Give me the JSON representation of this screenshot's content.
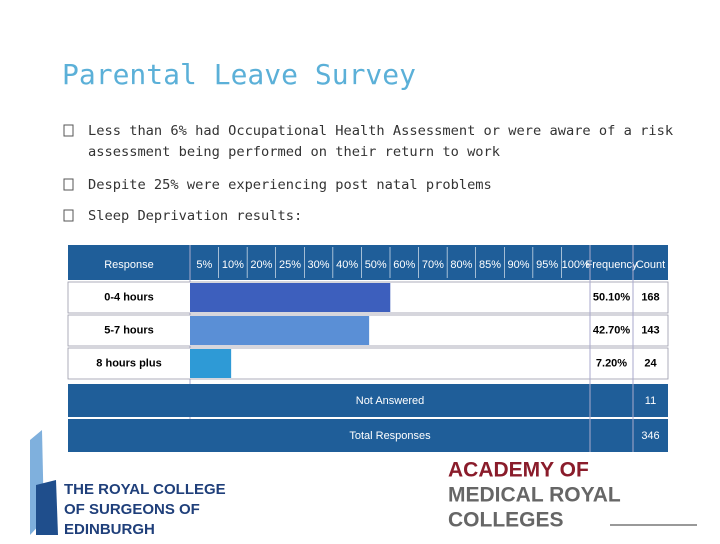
{
  "title": "Parental Leave Survey",
  "bullets": [
    "Less than 6% had Occupational Health Assessment or were aware of a risk",
    "assessment being performed on their  return to  work",
    "Despite 25% were experiencing post natal problems",
    "Sleep Deprivation results:"
  ],
  "table": {
    "response_header": "Response",
    "percent_headers": [
      {
        "value": 5,
        "label": "5%"
      },
      {
        "value": 10,
        "label": "10%"
      },
      {
        "value": 20,
        "label": "20%"
      },
      {
        "value": 25,
        "label": "25%"
      },
      {
        "value": 30,
        "label": "30%"
      },
      {
        "value": 40,
        "label": "40%"
      },
      {
        "value": 50,
        "label": "50%"
      },
      {
        "value": 60,
        "label": "60%"
      },
      {
        "value": 70,
        "label": "70%"
      },
      {
        "value": 80,
        "label": "80%"
      },
      {
        "value": 85,
        "label": "85%"
      },
      {
        "value": 90,
        "label": "90%"
      },
      {
        "value": 95,
        "label": "95%"
      },
      {
        "value": 100,
        "label": "100%"
      }
    ],
    "frequency_header": "Frequency",
    "count_header": "Count",
    "rows": [
      {
        "response": "0-4 hours",
        "frequency": 50.1,
        "frequency_label": "50.10%",
        "count": 168,
        "color": "#3d5fbd"
      },
      {
        "response": "5-7 hours",
        "frequency": 42.7,
        "frequency_label": "42.70%",
        "count": 143,
        "color": "#5a8fd6"
      },
      {
        "response": "8 hours plus",
        "frequency": 7.2,
        "frequency_label": "7.20%",
        "count": 24,
        "color": "#2e9ad6"
      }
    ],
    "not_answered": {
      "label": "Not Answered",
      "count": 11
    },
    "total": {
      "label": "Total Responses",
      "count": 346
    }
  },
  "logos": {
    "rcsed": [
      "THE ROYAL COLLEGE",
      "OF SURGEONS OF",
      "EDINBURGH"
    ],
    "aomrc": [
      "ACADEMY OF",
      "MEDICAL ROYAL",
      "COLLEGES"
    ]
  }
}
